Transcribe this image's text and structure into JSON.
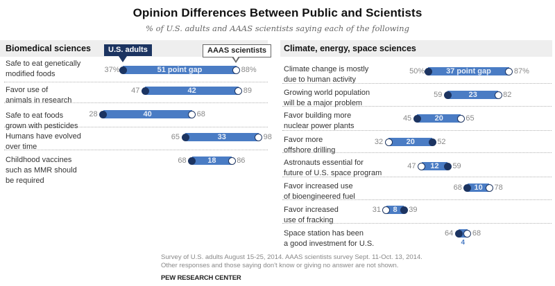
{
  "chart_data": {
    "type": "dumbbell",
    "title": "Opinion Differences Between Public and Scientists",
    "subtitle": "% of U.S. adults and AAAS scientists saying each of the following",
    "legend": {
      "public": "U.S. adults",
      "scientists": "AAAS scientists",
      "placement": "top-left panel, above first row"
    },
    "series": [
      {
        "name": "U.S. adults",
        "marker": "filled-circle",
        "color": "#1c3461"
      },
      {
        "name": "AAAS scientists",
        "marker": "open-circle",
        "color": "#ffffff"
      }
    ],
    "bar_color": "#4a7cc4",
    "panels": [
      {
        "title": "Biomedical sciences",
        "items": [
          {
            "label": "Safe to eat genetically\nmodified foods",
            "public": 37,
            "scientists": 88,
            "gap": 51,
            "gap_label": "51 point gap",
            "public_label": "37%",
            "sci_label": "88%"
          },
          {
            "label": "Favor use of\nanimals in research",
            "public": 47,
            "scientists": 89,
            "gap": 42,
            "gap_label": "42",
            "public_label": "47",
            "sci_label": "89"
          },
          {
            "label": "Safe to eat foods\ngrown with pesticides",
            "public": 28,
            "scientists": 68,
            "gap": 40,
            "gap_label": "40",
            "public_label": "28",
            "sci_label": "68"
          },
          {
            "label": "Humans have evolved\nover time",
            "public": 65,
            "scientists": 98,
            "gap": 33,
            "gap_label": "33",
            "public_label": "65",
            "sci_label": "98"
          },
          {
            "label": "Childhood vaccines\nsuch as MMR should\nbe required",
            "public": 68,
            "scientists": 86,
            "gap": 18,
            "gap_label": "18",
            "public_label": "68",
            "sci_label": "86"
          }
        ]
      },
      {
        "title": "Climate, energy, space sciences",
        "items": [
          {
            "label": "Climate change is mostly\ndue to human activity",
            "public": 50,
            "scientists": 87,
            "gap": 37,
            "gap_label": "37 point gap",
            "public_label": "50%",
            "sci_label": "87%"
          },
          {
            "label": "Growing world population\nwill be a major problem",
            "public": 59,
            "scientists": 82,
            "gap": 23,
            "gap_label": "23",
            "public_label": "59",
            "sci_label": "82"
          },
          {
            "label": "Favor building more\nnuclear power plants",
            "public": 45,
            "scientists": 65,
            "gap": 20,
            "gap_label": "20",
            "public_label": "45",
            "sci_label": "65"
          },
          {
            "label": "Favor more\noffshore drilling",
            "public": 52,
            "scientists": 32,
            "gap": 20,
            "gap_label": "20",
            "public_label": "52",
            "sci_label": "32"
          },
          {
            "label": "Astronauts essential for\nfuture of U.S. space program",
            "public": 59,
            "scientists": 47,
            "gap": 12,
            "gap_label": "12",
            "public_label": "59",
            "sci_label": "47"
          },
          {
            "label": "Favor increased use\nof bioengineered fuel",
            "public": 68,
            "scientists": 78,
            "gap": 10,
            "gap_label": "10",
            "public_label": "68",
            "sci_label": "78"
          },
          {
            "label": "Favor increased\nuse of fracking",
            "public": 39,
            "scientists": 31,
            "gap": 8,
            "gap_label": "8",
            "public_label": "39",
            "sci_label": "31"
          },
          {
            "label": "Space station has been\na good investment for U.S.",
            "public": 64,
            "scientists": 68,
            "gap": 4,
            "gap_label": "4",
            "gap_label_below": true,
            "public_label": "64",
            "sci_label": "68"
          }
        ]
      }
    ],
    "xlim": [
      0,
      100
    ],
    "grid": false
  },
  "footer": {
    "note": "Survey of U.S. adults August 15-25, 2014. AAAS scientists survey Sept. 11-Oct. 13, 2014.\nOther responses and those saying don't know or giving no answer are not shown.",
    "source": "PEW RESEARCH CENTER"
  }
}
